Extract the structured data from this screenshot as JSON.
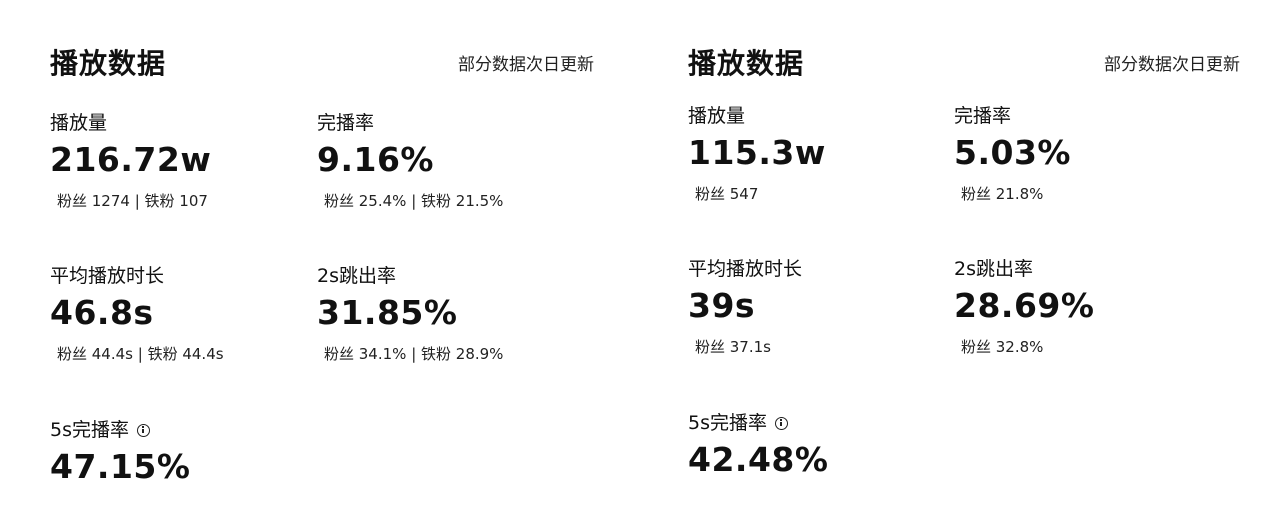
{
  "left": {
    "title": "播放数据",
    "note": "部分数据次日更新",
    "metrics": [
      {
        "label": "播放量",
        "value": "216.72w",
        "sub": "粉丝 1274 | 铁粉 107"
      },
      {
        "label": "完播率",
        "value": "9.16%",
        "sub": "粉丝 25.4% | 铁粉 21.5%"
      },
      {
        "label": "平均播放时长",
        "value": "46.8s",
        "sub": "粉丝 44.4s | 铁粉 44.4s"
      },
      {
        "label": "2s跳出率",
        "value": "31.85%",
        "sub": "粉丝 34.1% | 铁粉 28.9%"
      },
      {
        "label": "5s完播率",
        "value": "47.15%",
        "icon": "info-icon"
      }
    ]
  },
  "right": {
    "title": "播放数据",
    "note": "部分数据次日更新",
    "metrics": [
      {
        "label": "播放量",
        "value": "115.3w",
        "sub": "粉丝 547"
      },
      {
        "label": "完播率",
        "value": "5.03%",
        "sub": "粉丝 21.8%"
      },
      {
        "label": "平均播放时长",
        "value": "39s",
        "sub": "粉丝 37.1s"
      },
      {
        "label": "2s跳出率",
        "value": "28.69%",
        "sub": "粉丝 32.8%"
      },
      {
        "label": "5s完播率",
        "value": "42.48%",
        "icon": "info-icon"
      }
    ]
  }
}
